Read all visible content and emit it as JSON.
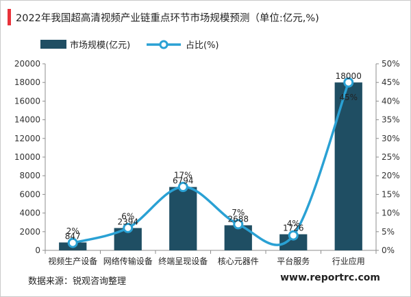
{
  "header": {
    "title": "2022年我国超高清视频产业链重点环节市场规模预测（单位:亿元,%)"
  },
  "colors": {
    "accent": "#e8323a",
    "bar": "#1f4e63",
    "line": "#2aa1d4"
  },
  "footer": {
    "source": "数据来源：锐观咨询整理",
    "website": "www.reportrc.com"
  },
  "chart_data": {
    "type": "bar",
    "title": "2022年我国超高清视频产业链重点环节市场规模预测（单位:亿元,%)",
    "categories": [
      "视频生产设备",
      "网络传输设备",
      "终端呈现设备",
      "核心元器件",
      "平台服务",
      "行业应用"
    ],
    "series": [
      {
        "name": "市场规模(亿元)",
        "type": "bar",
        "axis": "left",
        "values": [
          847,
          2394,
          6794,
          2688,
          1726,
          18000
        ],
        "labels": [
          "847",
          "2394",
          "6794",
          "2688",
          "1726",
          "18000"
        ]
      },
      {
        "name": "占比(%)",
        "type": "line",
        "axis": "right",
        "values": [
          2,
          6,
          17,
          7,
          4,
          45
        ],
        "labels": [
          "2%",
          "6%",
          "17%",
          "7%",
          "4%",
          "45%"
        ]
      }
    ],
    "ylim": [
      0,
      20000
    ],
    "y_ticks": [
      "0",
      "2000",
      "4000",
      "6000",
      "8000",
      "10000",
      "12000",
      "14000",
      "16000",
      "18000",
      "20000"
    ],
    "y2lim": [
      0,
      50
    ],
    "y2_ticks": [
      "0%",
      "5%",
      "10%",
      "15%",
      "20%",
      "25%",
      "30%",
      "35%",
      "40%",
      "45%",
      "50%"
    ],
    "legend": "top",
    "grid": false
  }
}
